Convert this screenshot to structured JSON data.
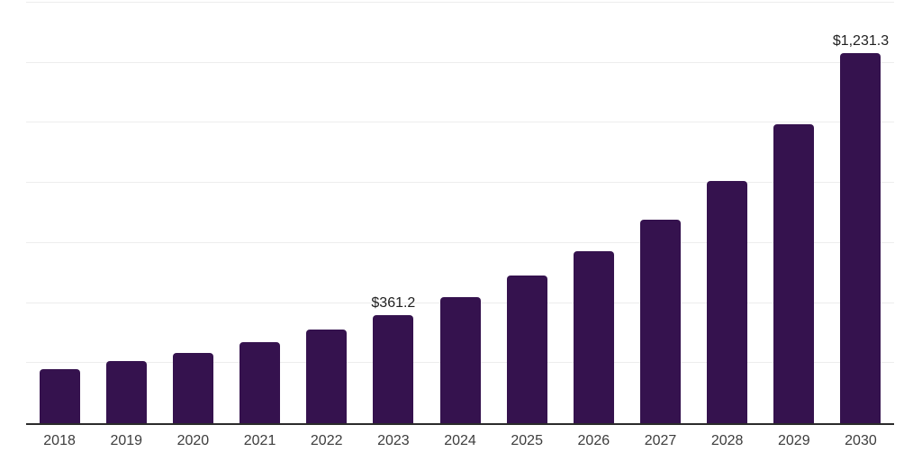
{
  "chart_data": {
    "type": "bar",
    "title": "",
    "xlabel": "",
    "ylabel": "",
    "categories": [
      "2018",
      "2019",
      "2020",
      "2021",
      "2022",
      "2023",
      "2024",
      "2025",
      "2026",
      "2027",
      "2028",
      "2029",
      "2030"
    ],
    "values": [
      180,
      207,
      235,
      270,
      312,
      361.2,
      420,
      493,
      573,
      678,
      805,
      996,
      1231.3
    ],
    "bar_labels": [
      "",
      "",
      "",
      "",
      "",
      "$361.2",
      "",
      "",
      "",
      "",
      "",
      "",
      "$1,231.3"
    ],
    "ylim": [
      0,
      1400
    ],
    "gridline_step": 200,
    "grid": "on",
    "legend": "none",
    "y_tick_labels_visible": false,
    "colors": {
      "bar": "#35124E",
      "grid": "#ededed",
      "axis": "#2b2b2b",
      "value_label": "#1f1f1f",
      "tick_label": "#3d3d3d",
      "background": "#ffffff"
    }
  }
}
